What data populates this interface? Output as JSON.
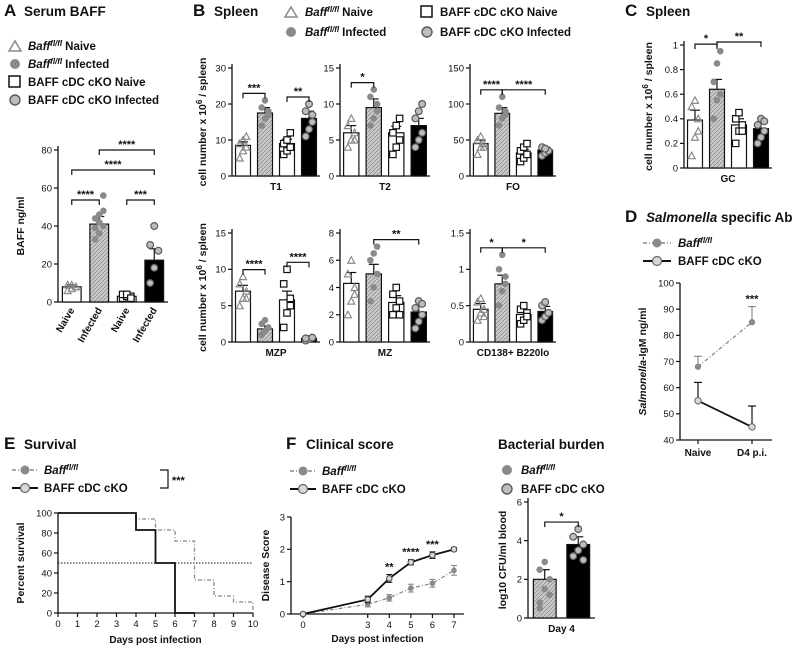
{
  "panels": {
    "A": {
      "label": "A",
      "title": "Serum BAFF"
    },
    "B": {
      "label": "B",
      "title": "Spleen"
    },
    "C": {
      "label": "C",
      "title": "Spleen"
    },
    "D": {
      "label": "D",
      "title_italic": "Salmonella",
      "title_rest": " specific Ab"
    },
    "E": {
      "label": "E",
      "title": "Survival"
    },
    "F": {
      "label": "F",
      "title": "Clinical score",
      "title2": "Bacterial burden"
    }
  },
  "legend": {
    "baff_sup": "fl/fl",
    "baff_name": "Baff",
    "naive": "Naive",
    "infected": "Infected",
    "cko_naive": "BAFF cDC cKO Naive",
    "cko_infected": "BAFF cDC cKO Infected",
    "cko": "BAFF cDC cKO"
  },
  "colors": {
    "wt_naive": "#ffffff",
    "wt_infected": "#c9c9c9",
    "cko_naive": "#ffffff",
    "cko_infected": "#000000",
    "gray_marker": "#8a8a8a",
    "axis": "#111111"
  },
  "chart_data": [
    {
      "id": "A",
      "type": "bar",
      "title": "Serum BAFF",
      "categories": [
        "Naive",
        "Infected",
        "Naive",
        "Infected"
      ],
      "values": [
        8,
        41,
        3,
        22
      ],
      "errors": [
        1,
        4,
        1,
        6
      ],
      "points": [
        [
          6,
          7,
          8,
          9,
          9,
          8
        ],
        [
          33,
          36,
          40,
          44,
          46,
          48,
          39,
          42,
          56
        ],
        [
          2,
          3,
          3,
          4,
          4,
          2
        ],
        [
          10,
          18,
          27,
          30,
          40
        ]
      ],
      "ylabel": "BAFF ng/ml",
      "ylim": [
        0,
        80
      ],
      "yticks": [
        0,
        20,
        40,
        60,
        80
      ],
      "sig": [
        {
          "pair": [
            0,
            1
          ],
          "label": "****"
        },
        {
          "pair": [
            0,
            3
          ],
          "label": "****"
        },
        {
          "pair": [
            1,
            3
          ],
          "label": "****"
        },
        {
          "pair": [
            2,
            3
          ],
          "label": "***"
        }
      ]
    },
    {
      "id": "B-T1",
      "type": "bar",
      "xlabel": "T1",
      "values": [
        8.5,
        17.5,
        9,
        16
      ],
      "errors": [
        1,
        1.5,
        1.2,
        2
      ],
      "points": [
        [
          5,
          7,
          8,
          9,
          10,
          11
        ],
        [
          14,
          16,
          17,
          19,
          21,
          18
        ],
        [
          6,
          7,
          8,
          9,
          10,
          12
        ],
        [
          11,
          13,
          15,
          18,
          20,
          17
        ]
      ],
      "ylabel": "cell number x 10^6 / spleen",
      "ylim": [
        0,
        30
      ],
      "yticks": [
        0,
        10,
        20,
        30
      ],
      "sig": [
        {
          "pair": [
            0,
            1
          ],
          "label": "***"
        },
        {
          "pair": [
            2,
            3
          ],
          "label": "**"
        }
      ]
    },
    {
      "id": "B-T2",
      "type": "bar",
      "xlabel": "T2",
      "values": [
        6,
        9.5,
        6,
        7
      ],
      "errors": [
        1,
        1.2,
        0.9,
        1
      ],
      "points": [
        [
          4,
          5,
          6,
          7,
          8,
          5
        ],
        [
          7,
          8,
          9,
          11,
          12,
          10
        ],
        [
          3,
          4,
          5,
          6,
          7,
          8
        ],
        [
          4,
          5,
          6,
          8,
          9,
          10
        ]
      ],
      "ylim": [
        0,
        15
      ],
      "yticks": [
        0,
        5,
        10,
        15
      ],
      "sig": [
        {
          "pair": [
            0,
            1
          ],
          "label": "*"
        }
      ]
    },
    {
      "id": "B-FO",
      "type": "bar",
      "xlabel": "FO",
      "values": [
        45,
        87,
        32,
        36
      ],
      "errors": [
        5,
        8,
        5,
        4
      ],
      "points": [
        [
          30,
          40,
          45,
          50,
          55,
          40
        ],
        [
          70,
          80,
          85,
          95,
          110,
          90
        ],
        [
          20,
          25,
          30,
          35,
          40,
          45
        ],
        [
          28,
          32,
          35,
          40,
          38
        ]
      ],
      "ylim": [
        0,
        150
      ],
      "yticks": [
        0,
        50,
        100,
        150
      ],
      "sig": [
        {
          "pair": [
            0,
            1
          ],
          "label": "****"
        },
        {
          "pair": [
            1,
            3
          ],
          "label": "****"
        }
      ]
    },
    {
      "id": "B-MZP",
      "type": "bar",
      "xlabel": "MZP",
      "values": [
        7,
        1.8,
        5.8,
        0.5
      ],
      "errors": [
        0.8,
        0.4,
        1.2,
        0.2
      ],
      "points": [
        [
          5,
          6,
          7,
          8,
          9,
          6
        ],
        [
          1,
          1.5,
          2,
          2.5,
          3
        ],
        [
          2,
          4,
          6,
          8,
          10,
          5
        ],
        [
          0.2,
          0.4,
          0.6,
          0.5
        ]
      ],
      "ylabel": "cell number x 10^6 / spleen",
      "ylim": [
        0,
        15
      ],
      "yticks": [
        0,
        5,
        10,
        15
      ],
      "sig": [
        {
          "pair": [
            0,
            1
          ],
          "label": "****"
        },
        {
          "pair": [
            2,
            3
          ],
          "label": "****"
        }
      ]
    },
    {
      "id": "B-MZ",
      "type": "bar",
      "xlabel": "MZ",
      "values": [
        4.3,
        5,
        2.9,
        2.2
      ],
      "errors": [
        0.8,
        0.7,
        0.5,
        0.4
      ],
      "points": [
        [
          2,
          3,
          4,
          5,
          6,
          3.5
        ],
        [
          3,
          4,
          5,
          6,
          6.5,
          7
        ],
        [
          2,
          2.5,
          3,
          3.5,
          4,
          2
        ],
        [
          1,
          1.5,
          2,
          2.5,
          3,
          2.8
        ]
      ],
      "ylim": [
        0,
        8
      ],
      "yticks": [
        0,
        2,
        4,
        6,
        8
      ],
      "sig": [
        {
          "pair": [
            1,
            3
          ],
          "label": "**"
        }
      ]
    },
    {
      "id": "B-CD138",
      "type": "bar",
      "xlabel": "CD138+ B220lo",
      "values": [
        0.45,
        0.8,
        0.38,
        0.42
      ],
      "errors": [
        0.08,
        0.12,
        0.06,
        0.07
      ],
      "points": [
        [
          0.3,
          0.4,
          0.45,
          0.55,
          0.6,
          0.35
        ],
        [
          0.5,
          0.7,
          0.8,
          1,
          1.2,
          0.9
        ],
        [
          0.25,
          0.3,
          0.4,
          0.45,
          0.5,
          0.35
        ],
        [
          0.3,
          0.35,
          0.4,
          0.5,
          0.55
        ]
      ],
      "ylim": [
        0,
        1.5
      ],
      "yticks": [
        0,
        0.5,
        1,
        1.5
      ],
      "sig": [
        {
          "pair": [
            0,
            1
          ],
          "label": "*"
        },
        {
          "pair": [
            1,
            3
          ],
          "label": "*"
        }
      ]
    },
    {
      "id": "C",
      "type": "bar",
      "xlabel": "GC",
      "values": [
        0.39,
        0.64,
        0.35,
        0.32
      ],
      "errors": [
        0.08,
        0.08,
        0.05,
        0.04
      ],
      "points": [
        [
          0.1,
          0.25,
          0.4,
          0.5,
          0.55,
          0.3
        ],
        [
          0.4,
          0.55,
          0.6,
          0.7,
          0.85,
          0.95
        ],
        [
          0.2,
          0.3,
          0.35,
          0.4,
          0.45,
          0.3
        ],
        [
          0.2,
          0.25,
          0.3,
          0.35,
          0.4,
          0.38
        ]
      ],
      "ylabel": "cell number x 10^6 / spleen",
      "ylim": [
        0,
        1.0
      ],
      "yticks": [
        0,
        0.2,
        0.4,
        0.6,
        0.8,
        1.0
      ],
      "sig": [
        {
          "pair": [
            0,
            1
          ],
          "label": "*"
        },
        {
          "pair": [
            1,
            3
          ],
          "label": "**"
        }
      ]
    },
    {
      "id": "D",
      "type": "line",
      "title": "Salmonella specific Ab",
      "categories": [
        "Naive",
        "D4 p.i."
      ],
      "series": [
        {
          "name": "Baff fl/fl",
          "values": [
            68,
            85
          ],
          "errors": [
            4,
            6
          ]
        },
        {
          "name": "BAFF cDC cKO",
          "values": [
            55,
            45
          ],
          "errors": [
            7,
            8
          ]
        }
      ],
      "ylabel": "Salmonella-IgM ng/ml",
      "ylim": [
        40,
        100
      ],
      "yticks": [
        40,
        50,
        60,
        70,
        80,
        90,
        100
      ],
      "sig": [
        {
          "x": 1,
          "label": "***"
        }
      ]
    },
    {
      "id": "E",
      "type": "line",
      "title": "Survival",
      "series": [
        {
          "name": "Baff fl/fl",
          "steps": [
            [
              0,
              100
            ],
            [
              4,
              100
            ],
            [
              4,
              94
            ],
            [
              5,
              94
            ],
            [
              5,
              83
            ],
            [
              6,
              83
            ],
            [
              6,
              72
            ],
            [
              7,
              72
            ],
            [
              7,
              33
            ],
            [
              8,
              33
            ],
            [
              8,
              17
            ],
            [
              9,
              17
            ],
            [
              9,
              11
            ],
            [
              10,
              11
            ],
            [
              10,
              0
            ]
          ]
        },
        {
          "name": "BAFF cDC cKO",
          "steps": [
            [
              0,
              100
            ],
            [
              4,
              100
            ],
            [
              4,
              83
            ],
            [
              5,
              83
            ],
            [
              5,
              50
            ],
            [
              6,
              50
            ],
            [
              6,
              0
            ],
            [
              7,
              0
            ]
          ]
        }
      ],
      "xlabel": "Days post infection",
      "ylabel": "Percent survival",
      "xlim": [
        0,
        10
      ],
      "xticks": [
        0,
        1,
        2,
        3,
        4,
        5,
        6,
        7,
        8,
        9,
        10
      ],
      "ylim": [
        0,
        100
      ],
      "yticks": [
        0,
        20,
        40,
        60,
        80,
        100
      ],
      "sig_label": "***",
      "reference_y": 50
    },
    {
      "id": "F-score",
      "type": "line",
      "title": "Clinical score",
      "x": [
        0,
        3,
        4,
        5,
        6,
        7
      ],
      "series": [
        {
          "name": "Baff fl/fl",
          "values": [
            0,
            0.3,
            0.5,
            0.8,
            0.95,
            1.35
          ],
          "errors": [
            0,
            0.08,
            0.1,
            0.12,
            0.12,
            0.15
          ]
        },
        {
          "name": "BAFF cDC cKO",
          "values": [
            0,
            0.45,
            1.1,
            1.6,
            1.82,
            2.0
          ],
          "errors": [
            0,
            0.1,
            0.12,
            0.08,
            0.1,
            0.05
          ]
        }
      ],
      "xlabel": "Days post infection",
      "ylabel": "Disease  Score",
      "xlim": [
        0,
        7
      ],
      "xticks": [
        0,
        3,
        4,
        5,
        6,
        7
      ],
      "ylim": [
        0,
        3
      ],
      "yticks": [
        0,
        1,
        2,
        3
      ],
      "sig": [
        {
          "x": 4,
          "label": "**"
        },
        {
          "x": 5,
          "label": "****"
        },
        {
          "x": 6,
          "label": "***"
        }
      ]
    },
    {
      "id": "F-burden",
      "type": "bar",
      "title": "Bacterial burden",
      "xlabel": "Day 4",
      "values": [
        2.0,
        3.8
      ],
      "errors": [
        0.5,
        0.4
      ],
      "points": [
        [
          0.8,
          1.5,
          2,
          2.5,
          2.9,
          1.2,
          0.5
        ],
        [
          3.2,
          3.5,
          3.8,
          4.2,
          4.6,
          3.0
        ]
      ],
      "ylabel": "log10 CFU/ml blood",
      "ylim": [
        0,
        6
      ],
      "yticks": [
        0,
        2,
        4,
        6
      ],
      "sig": [
        {
          "pair": [
            0,
            1
          ],
          "label": "*"
        }
      ]
    }
  ]
}
